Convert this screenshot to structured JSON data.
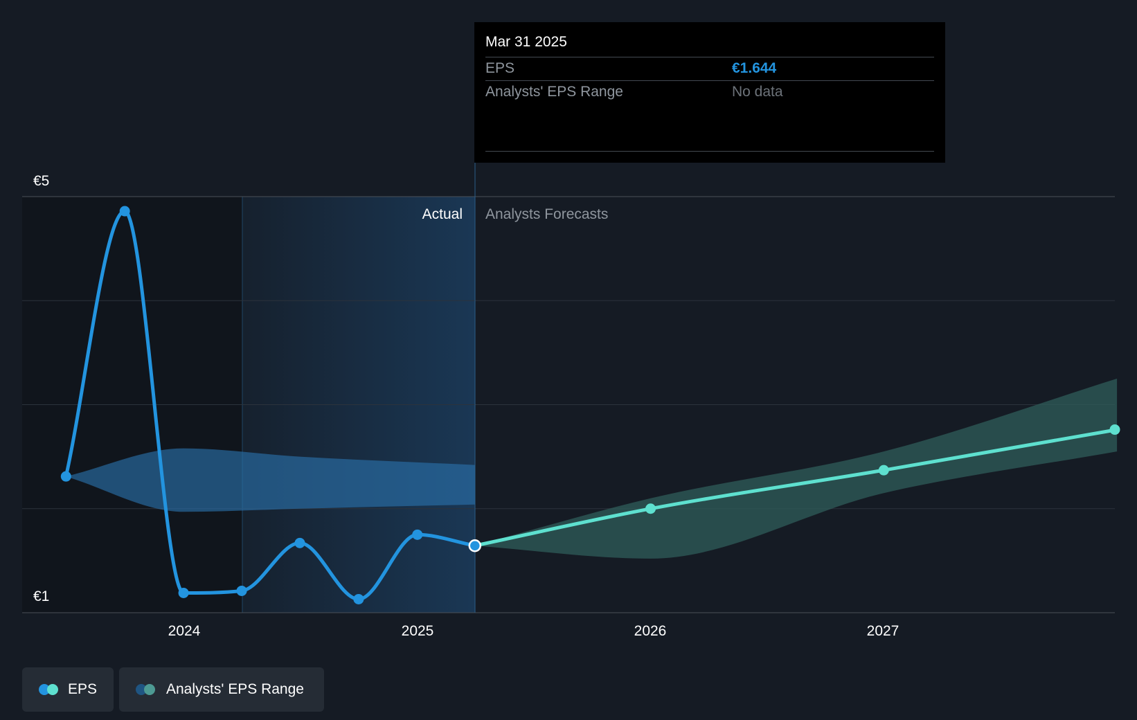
{
  "chart_data": {
    "type": "line",
    "y_ticks": [
      "€5",
      "€1"
    ],
    "ylim": [
      1,
      5
    ],
    "x_ticks": [
      "2024",
      "2025",
      "2026",
      "2027"
    ],
    "region_labels": {
      "actual": "Actual",
      "forecast": "Analysts Forecasts"
    },
    "series": [
      {
        "name": "EPS",
        "kind": "actual",
        "color": "#2394df",
        "points": [
          [
            "2023-06-30",
            2.31
          ],
          [
            "2023-09-30",
            4.86
          ],
          [
            "2023-12-31",
            1.19
          ],
          [
            "2024-03-31",
            1.21
          ],
          [
            "2024-06-30",
            1.67
          ],
          [
            "2024-09-30",
            1.13
          ],
          [
            "2024-12-31",
            1.75
          ],
          [
            "2025-03-31",
            1.644
          ]
        ]
      },
      {
        "name": "EPS",
        "kind": "forecast",
        "color": "#5ee0cf",
        "points": [
          [
            "2025-03-31",
            1.644
          ],
          [
            "2025-12-31",
            2.0
          ],
          [
            "2026-12-31",
            2.37
          ],
          [
            "2027-12-31",
            2.76
          ]
        ]
      }
    ],
    "ranges": [
      {
        "name": "Analysts' EPS Range",
        "kind": "actual",
        "color": "#2394df",
        "upper": [
          [
            "2023-06-30",
            2.31
          ],
          [
            "2023-12-31",
            2.58
          ],
          [
            "2024-06-30",
            2.5
          ],
          [
            "2025-03-31",
            2.42
          ]
        ],
        "lower": [
          [
            "2023-06-30",
            2.31
          ],
          [
            "2023-12-31",
            1.97
          ],
          [
            "2024-06-30",
            2.0
          ],
          [
            "2025-03-31",
            2.04
          ]
        ]
      },
      {
        "name": "Analysts' EPS Range",
        "kind": "forecast",
        "color": "#5ee0cf",
        "upper": [
          [
            "2025-03-31",
            1.644
          ],
          [
            "2025-12-31",
            2.1
          ],
          [
            "2026-12-31",
            2.55
          ],
          [
            "2027-12-31",
            3.25
          ]
        ],
        "lower": [
          [
            "2025-03-31",
            1.644
          ],
          [
            "2025-12-31",
            1.52
          ],
          [
            "2026-12-31",
            2.15
          ],
          [
            "2027-12-31",
            2.55
          ]
        ]
      }
    ],
    "highlight": [
      "2025-03-31",
      1.644
    ],
    "grid": true,
    "legend": [
      "EPS",
      "Analysts' EPS Range"
    ],
    "legend_position": "bottom-left"
  },
  "tooltip": {
    "date": "Mar 31 2025",
    "eps_label": "EPS",
    "eps_value": "€1.644",
    "range_label": "Analysts' EPS Range",
    "range_value": "No data"
  },
  "legend": {
    "eps_label": "EPS",
    "range_label": "Analysts' EPS Range"
  },
  "colors": {
    "background": "#151b24",
    "eps_actual": "#2394df",
    "eps_forecast": "#5ee0cf"
  }
}
